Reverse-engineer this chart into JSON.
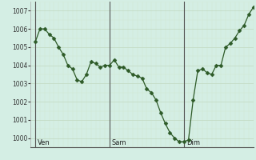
{
  "background_color": "#d4eee4",
  "plot_bg_color": "#d4eee4",
  "line_color": "#2d5a27",
  "marker_color": "#2d5a27",
  "grid_color_major": "#c0d8c0",
  "grid_color_minor": "#d0e8d0",
  "ylim": [
    999.5,
    1007.5
  ],
  "yticks": [
    1000,
    1001,
    1002,
    1003,
    1004,
    1005,
    1006,
    1007
  ],
  "day_labels": [
    "Ven",
    "Sam",
    "Dim"
  ],
  "day_positions": [
    0,
    48,
    96
  ],
  "xlim": [
    -3,
    141
  ],
  "x_values": [
    0,
    3,
    6,
    9,
    12,
    15,
    18,
    21,
    24,
    27,
    30,
    33,
    36,
    39,
    42,
    45,
    48,
    51,
    54,
    57,
    60,
    63,
    66,
    69,
    72,
    75,
    78,
    81,
    84,
    87,
    90,
    93,
    96,
    99,
    102,
    105,
    108,
    111,
    114,
    117,
    120,
    123,
    126,
    129,
    132,
    135,
    138,
    141
  ],
  "y_values": [
    1005.3,
    1006.0,
    1006.0,
    1005.7,
    1005.5,
    1005.0,
    1004.6,
    1004.0,
    1003.8,
    1003.2,
    1003.1,
    1003.5,
    1004.2,
    1004.1,
    1003.9,
    1004.0,
    1004.0,
    1004.3,
    1003.9,
    1003.9,
    1003.7,
    1003.5,
    1003.4,
    1003.3,
    1002.7,
    1002.5,
    1002.1,
    1001.4,
    1000.8,
    1000.3,
    1000.0,
    999.8,
    999.8,
    999.9,
    1002.1,
    1003.7,
    1003.8,
    1003.6,
    1003.5,
    1004.0,
    1004.0,
    1005.0,
    1005.2,
    1005.5,
    1005.9,
    1006.2,
    1006.8,
    1007.2
  ]
}
